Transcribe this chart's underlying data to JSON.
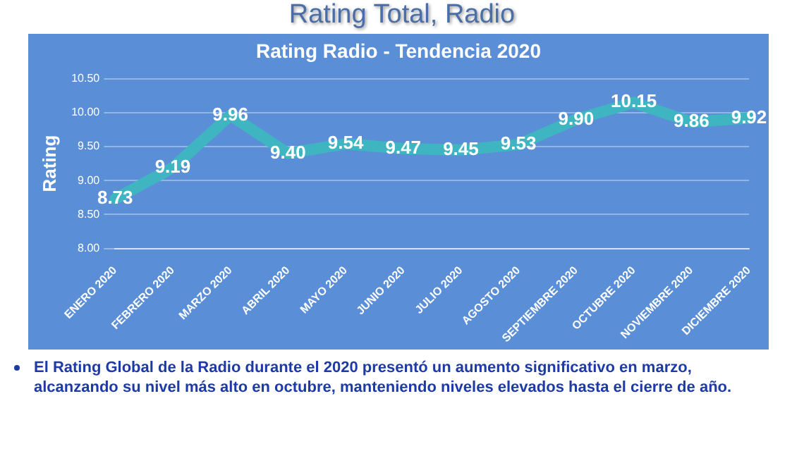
{
  "chart_data": {
    "type": "line",
    "title": "Rating Total, Radio",
    "subtitle": "Rating Radio - Tendencia 2020",
    "ylabel": "Rating",
    "categories": [
      "ENERO 2020",
      "FEBRERO 2020",
      "MARZO 2020",
      "ABRIL 2020",
      "MAYO 2020",
      "JUNIO 2020",
      "JULIO 2020",
      "AGOSTO 2020",
      "SEPTIEMBRE 2020",
      "OCTUBRE 2020",
      "NOVIEMBRE 2020",
      "DICIEMBRE 2020"
    ],
    "series": [
      {
        "color": "#3fb5c2",
        "values": [
          8.73,
          9.19,
          9.96,
          9.4,
          9.54,
          9.47,
          9.45,
          9.53,
          9.9,
          10.15,
          9.86,
          9.92
        ]
      }
    ],
    "value_labels": [
      "8.73",
      "9.19",
      "9.96",
      "9.40",
      "9.54",
      "9.47",
      "9.45",
      "9.53",
      "9.90",
      "10.15",
      "9.86",
      "9.92"
    ],
    "ylim": [
      8,
      10.5
    ],
    "yticks": [
      {
        "value": 8,
        "label": "8.00"
      },
      {
        "value": 8.5,
        "label": "8.50"
      },
      {
        "value": 9,
        "label": "9.00"
      },
      {
        "value": 9.5,
        "label": "9.50"
      },
      {
        "value": 10,
        "label": "10.00"
      },
      {
        "value": 10.5,
        "label": "10.50"
      }
    ],
    "grid": "y",
    "legend": false,
    "marker": "none",
    "line_style": "solid",
    "annotations": [
      "El Rating Global de la Radio durante el 2020 presentó un aumento significativo en marzo, alcanzando su nivel más alto en octubre, manteniendo niveles elevados hasta el cierre de año."
    ]
  }
}
